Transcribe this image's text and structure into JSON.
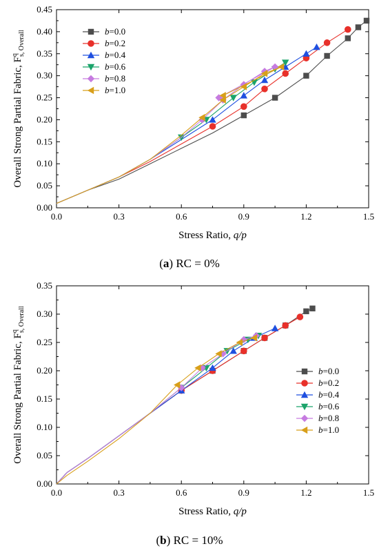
{
  "charts_ui": {
    "a": {
      "caption_label": "a",
      "caption_text": "RC = 0%"
    },
    "b": {
      "caption_label": "b",
      "caption_text": "RC = 10%"
    }
  },
  "chart_data": [
    {
      "type": "line",
      "panel": "a",
      "xlabel": "Stress Ratio,",
      "xlabel_var": "q/p",
      "ylabel": "Overall Strong Partial Fabric,",
      "ylabel_symbol": "F",
      "ylabel_sup": "q",
      "ylabel_sub": "s, Overall",
      "xlim": [
        0,
        1.5
      ],
      "ylim": [
        0,
        0.45
      ],
      "xticks": [
        "0.0",
        "0.3",
        "0.6",
        "0.9",
        "1.2",
        "1.5"
      ],
      "yticks": [
        "0.00",
        "0.05",
        "0.10",
        "0.15",
        "0.20",
        "0.25",
        "0.30",
        "0.35",
        "0.40",
        "0.45"
      ],
      "legend_position": "top-left",
      "series": [
        {
          "name": "b=0.0",
          "color": "#4d4d4d",
          "marker": "square",
          "x": [
            0,
            0.05,
            0.15,
            0.3,
            0.45,
            0.6,
            0.75,
            0.9,
            1.05,
            1.2,
            1.3,
            1.4,
            1.45,
            1.49
          ],
          "y": [
            0.01,
            0.02,
            0.04,
            0.065,
            0.1,
            0.135,
            0.17,
            0.21,
            0.25,
            0.3,
            0.345,
            0.385,
            0.41,
            0.425
          ]
        },
        {
          "name": "b=0.2",
          "color": "#e8302a",
          "marker": "circle",
          "x": [
            0,
            0.05,
            0.15,
            0.3,
            0.45,
            0.6,
            0.75,
            0.9,
            1.0,
            1.1,
            1.2,
            1.3,
            1.4
          ],
          "y": [
            0.01,
            0.02,
            0.04,
            0.07,
            0.105,
            0.145,
            0.185,
            0.23,
            0.27,
            0.305,
            0.34,
            0.375,
            0.405
          ]
        },
        {
          "name": "b=0.4",
          "color": "#1e4fe0",
          "marker": "triangle-up",
          "x": [
            0,
            0.05,
            0.15,
            0.3,
            0.45,
            0.6,
            0.75,
            0.9,
            1.0,
            1.1,
            1.2,
            1.25
          ],
          "y": [
            0.01,
            0.02,
            0.04,
            0.07,
            0.11,
            0.155,
            0.2,
            0.255,
            0.29,
            0.32,
            0.35,
            0.365
          ]
        },
        {
          "name": "b=0.6",
          "color": "#1aa36a",
          "marker": "triangle-down",
          "x": [
            0,
            0.05,
            0.15,
            0.3,
            0.45,
            0.6,
            0.72,
            0.85,
            0.95,
            1.05,
            1.1
          ],
          "y": [
            0.01,
            0.02,
            0.04,
            0.07,
            0.11,
            0.16,
            0.2,
            0.25,
            0.285,
            0.315,
            0.33
          ]
        },
        {
          "name": "b=0.8",
          "color": "#c67be0",
          "marker": "diamond",
          "x": [
            0,
            0.05,
            0.15,
            0.3,
            0.45,
            0.6,
            0.7,
            0.8,
            0.9,
            1.0,
            1.05,
            0.78
          ],
          "y": [
            0.01,
            0.02,
            0.04,
            0.07,
            0.11,
            0.16,
            0.2,
            0.245,
            0.28,
            0.31,
            0.32,
            0.25
          ]
        },
        {
          "name": "b=1.0",
          "color": "#d89f1a",
          "marker": "triangle-left",
          "x": [
            0,
            0.05,
            0.15,
            0.3,
            0.45,
            0.6,
            0.7,
            0.8,
            0.9,
            1.0,
            1.08,
            0.8
          ],
          "y": [
            0.01,
            0.02,
            0.04,
            0.07,
            0.11,
            0.165,
            0.205,
            0.245,
            0.275,
            0.305,
            0.32,
            0.255
          ]
        }
      ]
    },
    {
      "type": "line",
      "panel": "b",
      "xlabel": "Stress Ratio,",
      "xlabel_var": "q/p",
      "ylabel": "Overall Strong Partial Fabric,",
      "ylabel_symbol": "F",
      "ylabel_sup": "q",
      "ylabel_sub": "s, Overall",
      "xlim": [
        0,
        1.5
      ],
      "ylim": [
        0,
        0.35
      ],
      "xticks": [
        "0.0",
        "0.3",
        "0.6",
        "0.9",
        "1.2",
        "1.5"
      ],
      "yticks": [
        "0.00",
        "0.05",
        "0.10",
        "0.15",
        "0.20",
        "0.25",
        "0.30",
        "0.35"
      ],
      "legend_position": "center-right",
      "series": [
        {
          "name": "b=0.0",
          "color": "#4d4d4d",
          "marker": "square",
          "x": [
            0,
            0.05,
            0.15,
            0.3,
            0.45,
            0.6,
            0.75,
            0.9,
            1.0,
            1.1,
            1.2,
            1.23
          ],
          "y": [
            0.0,
            0.02,
            0.045,
            0.085,
            0.125,
            0.165,
            0.2,
            0.235,
            0.258,
            0.28,
            0.305,
            0.31
          ]
        },
        {
          "name": "b=0.2",
          "color": "#e8302a",
          "marker": "circle",
          "x": [
            0,
            0.05,
            0.15,
            0.3,
            0.45,
            0.6,
            0.75,
            0.9,
            1.0,
            1.1,
            1.17
          ],
          "y": [
            0.0,
            0.02,
            0.045,
            0.085,
            0.125,
            0.165,
            0.2,
            0.235,
            0.258,
            0.28,
            0.295
          ]
        },
        {
          "name": "b=0.4",
          "color": "#1e4fe0",
          "marker": "triangle-up",
          "x": [
            0,
            0.05,
            0.15,
            0.3,
            0.45,
            0.6,
            0.75,
            0.85,
            0.95,
            1.05
          ],
          "y": [
            0.0,
            0.02,
            0.045,
            0.085,
            0.125,
            0.165,
            0.205,
            0.235,
            0.258,
            0.275
          ]
        },
        {
          "name": "b=0.6",
          "color": "#1aa36a",
          "marker": "triangle-down",
          "x": [
            0,
            0.05,
            0.15,
            0.3,
            0.45,
            0.6,
            0.72,
            0.82,
            0.92,
            0.97
          ],
          "y": [
            0.0,
            0.02,
            0.045,
            0.085,
            0.125,
            0.17,
            0.205,
            0.235,
            0.255,
            0.262
          ]
        },
        {
          "name": "b=0.8",
          "color": "#c67be0",
          "marker": "diamond",
          "x": [
            0,
            0.05,
            0.15,
            0.3,
            0.45,
            0.6,
            0.7,
            0.8,
            0.9,
            0.96
          ],
          "y": [
            0.0,
            0.02,
            0.045,
            0.085,
            0.125,
            0.17,
            0.205,
            0.23,
            0.255,
            0.262
          ]
        },
        {
          "name": "b=1.0",
          "color": "#d89f1a",
          "marker": "triangle-left",
          "x": [
            0,
            0.05,
            0.15,
            0.3,
            0.45,
            0.58,
            0.68,
            0.78,
            0.88,
            0.95
          ],
          "y": [
            0.0,
            0.015,
            0.04,
            0.08,
            0.125,
            0.175,
            0.205,
            0.23,
            0.25,
            0.258
          ]
        }
      ]
    }
  ]
}
